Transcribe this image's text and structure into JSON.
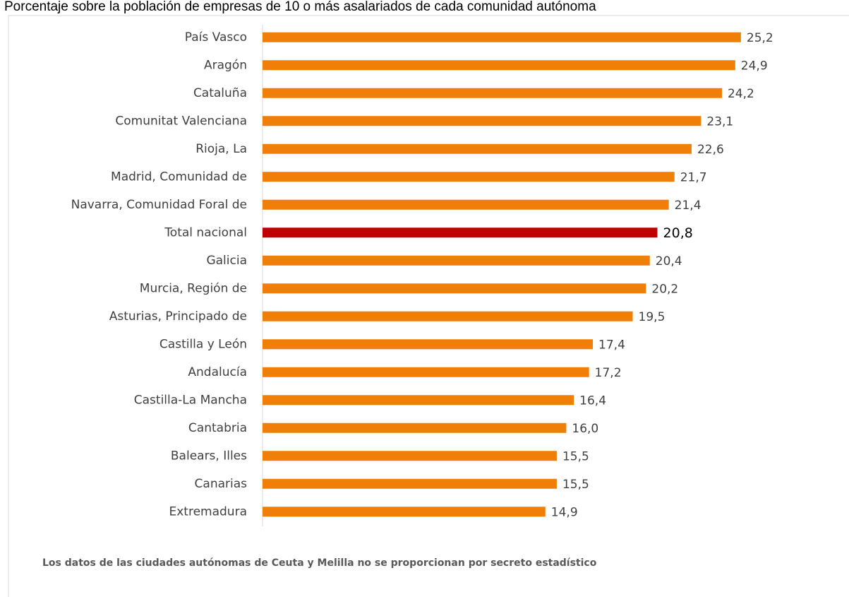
{
  "chart_data": {
    "type": "barh",
    "title": "Porcentaje sobre la población de empresas de 10 o más asalariados de cada comunidad autónoma",
    "note": "Los datos de las ciudades autónomas de Ceuta y Melilla no se proporcionan por secreto estadístico",
    "categories": [
      "País Vasco",
      "Aragón",
      "Cataluña",
      "Comunitat Valenciana",
      "Rioja, La",
      "Madrid, Comunidad de",
      "Navarra, Comunidad Foral de",
      "Total nacional",
      "Galicia",
      "Murcia, Región de",
      "Asturias, Principado de",
      "Castilla y León",
      "Andalucía",
      "Castilla-La Mancha",
      "Cantabria",
      "Balears, Illes",
      "Canarias",
      "Extremadura"
    ],
    "values": [
      25.2,
      24.9,
      24.2,
      23.1,
      22.6,
      21.7,
      21.4,
      20.8,
      20.4,
      20.2,
      19.5,
      17.4,
      17.2,
      16.4,
      16.0,
      15.5,
      15.5,
      14.9
    ],
    "value_labels": [
      "25,2",
      "24,9",
      "24,2",
      "23,1",
      "22,6",
      "21,7",
      "21,4",
      "20,8",
      "20,4",
      "20,2",
      "19,5",
      "17,4",
      "17,2",
      "16,4",
      "16,0",
      "15,5",
      "15,5",
      "14,9"
    ],
    "colors": [
      "#f07f09",
      "#f07f09",
      "#f07f09",
      "#f07f09",
      "#f07f09",
      "#f07f09",
      "#f07f09",
      "#c00000",
      "#f07f09",
      "#f07f09",
      "#f07f09",
      "#f07f09",
      "#f07f09",
      "#f07f09",
      "#f07f09",
      "#f07f09",
      "#f07f09",
      "#f07f09"
    ],
    "xlim": [
      0,
      30
    ]
  }
}
